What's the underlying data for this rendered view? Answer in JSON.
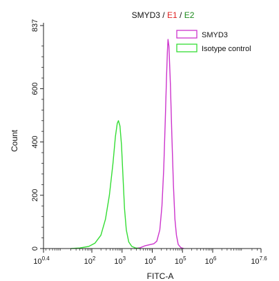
{
  "chart_data": {
    "type": "line",
    "title": {
      "parts": [
        {
          "text": "SMYD3",
          "color": "#111111"
        },
        {
          "text": " / ",
          "color": "#111111"
        },
        {
          "text": "E1",
          "color": "#e02020"
        },
        {
          "text": " / ",
          "color": "#111111"
        },
        {
          "text": "E2",
          "color": "#1a8a1a"
        }
      ]
    },
    "xlabel": "FITC-A",
    "ylabel": "Count",
    "xscale": "log",
    "xlim": [
      0.4,
      7.6
    ],
    "ylim": [
      0,
      837
    ],
    "x_ticks": [
      {
        "base": "10",
        "exp": "0.4",
        "pos": 0.4
      },
      {
        "base": "10",
        "exp": "2",
        "pos": 2
      },
      {
        "base": "10",
        "exp": "3",
        "pos": 3
      },
      {
        "base": "10",
        "exp": "4",
        "pos": 4
      },
      {
        "base": "10",
        "exp": "5",
        "pos": 5
      },
      {
        "base": "10",
        "exp": "6",
        "pos": 6
      },
      {
        "base": "10",
        "exp": "7.6",
        "pos": 7.6
      }
    ],
    "y_ticks": [
      {
        "label": "0",
        "value": 0
      },
      {
        "label": "200",
        "value": 200
      },
      {
        "label": "400",
        "value": 400
      },
      {
        "label": "600",
        "value": 600
      },
      {
        "label": "837",
        "value": 837
      }
    ],
    "legend": "top-right",
    "series": [
      {
        "name": "SMYD3",
        "color": "#cc33cc",
        "points": [
          [
            3.4,
            0
          ],
          [
            3.6,
            3
          ],
          [
            3.75,
            10
          ],
          [
            3.9,
            14
          ],
          [
            4.05,
            18
          ],
          [
            4.15,
            28
          ],
          [
            4.25,
            70
          ],
          [
            4.32,
            160
          ],
          [
            4.38,
            300
          ],
          [
            4.43,
            480
          ],
          [
            4.47,
            640
          ],
          [
            4.5,
            740
          ],
          [
            4.52,
            785
          ],
          [
            4.55,
            760
          ],
          [
            4.6,
            620
          ],
          [
            4.65,
            420
          ],
          [
            4.7,
            240
          ],
          [
            4.75,
            110
          ],
          [
            4.8,
            50
          ],
          [
            4.86,
            15
          ],
          [
            4.95,
            3
          ],
          [
            5.05,
            0
          ]
        ]
      },
      {
        "name": "Isotype control",
        "color": "#33dd33",
        "points": [
          [
            1.3,
            0
          ],
          [
            1.6,
            2
          ],
          [
            1.9,
            8
          ],
          [
            2.1,
            20
          ],
          [
            2.3,
            50
          ],
          [
            2.45,
            110
          ],
          [
            2.58,
            200
          ],
          [
            2.7,
            320
          ],
          [
            2.78,
            420
          ],
          [
            2.84,
            470
          ],
          [
            2.88,
            480
          ],
          [
            2.93,
            460
          ],
          [
            2.98,
            390
          ],
          [
            3.03,
            270
          ],
          [
            3.08,
            150
          ],
          [
            3.14,
            70
          ],
          [
            3.22,
            25
          ],
          [
            3.32,
            8
          ],
          [
            3.45,
            2
          ],
          [
            3.6,
            0
          ]
        ]
      }
    ]
  }
}
